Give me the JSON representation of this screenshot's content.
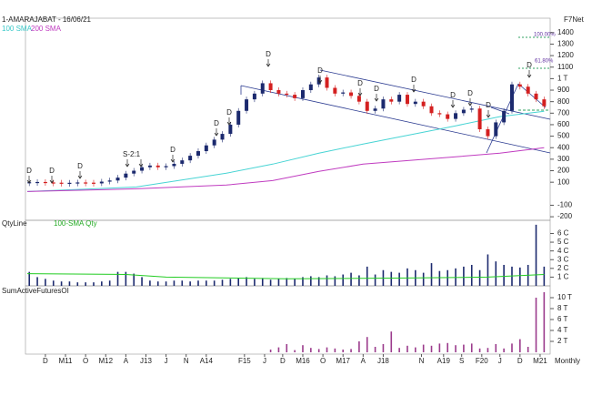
{
  "chart_data": [
    {
      "type": "candlestick",
      "title": "1-AMARAJABAT - 16/06/21",
      "source": "F7Net",
      "period": "Monthly",
      "x": [
        -4,
        -2,
        0,
        2,
        4,
        6,
        8,
        10,
        12,
        14,
        16,
        18,
        20,
        22,
        24,
        26,
        28,
        30,
        32,
        34,
        36,
        38,
        40,
        42,
        44,
        46,
        48,
        50,
        52,
        54,
        56,
        58,
        60,
        62,
        64,
        66,
        68,
        70,
        72,
        74,
        76,
        78,
        80,
        82,
        84,
        86,
        88,
        90,
        92,
        94,
        96,
        98,
        100,
        102,
        104,
        106,
        108,
        110,
        112,
        114,
        116,
        118,
        120,
        122,
        124
      ],
      "values": [
        100,
        102,
        98,
        96,
        92,
        95,
        98,
        96,
        90,
        105,
        115,
        140,
        175,
        200,
        230,
        245,
        230,
        240,
        260,
        290,
        330,
        370,
        420,
        470,
        520,
        600,
        720,
        820,
        870,
        960,
        900,
        870,
        860,
        830,
        900,
        950,
        1010,
        920,
        870,
        880,
        850,
        800,
        720,
        740,
        820,
        800,
        860,
        780,
        800,
        760,
        700,
        690,
        650,
        700,
        730,
        740,
        560,
        500,
        620,
        720,
        950,
        930,
        870,
        820,
        760
      ],
      "up_color": "#1c2a6e",
      "down_color": "#d42020",
      "series": [
        {
          "name": "100 SMA",
          "color": "#48d4d4",
          "x": [
            -4.5,
            22.6,
            45,
            56.5,
            68,
            79,
            90.5,
            102,
            113,
            124
          ],
          "values": [
            19,
            59,
            178,
            257,
            352,
            432,
            511,
            590,
            670,
            717
          ]
        },
        {
          "name": "200 SMA",
          "color": "#c03cc0",
          "x": [
            -4.5,
            22.6,
            45,
            56.5,
            68,
            79,
            90.5,
            102,
            113,
            124
          ],
          "values": [
            19,
            43,
            75,
            114,
            194,
            257,
            289,
            321,
            352,
            400
          ]
        }
      ],
      "xlim": [
        -4.5,
        125.5
      ],
      "xticks": [
        {
          "value": 0,
          "label": "D"
        },
        {
          "value": 5,
          "label": "M11"
        },
        {
          "value": 10,
          "label": "O"
        },
        {
          "value": 15,
          "label": "M12"
        },
        {
          "value": 20,
          "label": "A"
        },
        {
          "value": 25,
          "label": "J13"
        },
        {
          "value": 30,
          "label": "J"
        },
        {
          "value": 35,
          "label": "N"
        },
        {
          "value": 40,
          "label": "A14"
        },
        {
          "value": 49.5,
          "label": "F15"
        },
        {
          "value": 54.5,
          "label": "J"
        },
        {
          "value": 59,
          "label": "D"
        },
        {
          "value": 64,
          "label": "M16"
        },
        {
          "value": 69,
          "label": "O"
        },
        {
          "value": 74,
          "label": "M17"
        },
        {
          "value": 79,
          "label": "A"
        },
        {
          "value": 84,
          "label": "J18"
        },
        {
          "value": 93.5,
          "label": "N"
        },
        {
          "value": 99,
          "label": "A19"
        },
        {
          "value": 103.5,
          "label": "S"
        },
        {
          "value": 108.5,
          "label": "F20"
        },
        {
          "value": 113,
          "label": "J"
        },
        {
          "value": 118,
          "label": "D"
        },
        {
          "value": 123,
          "label": "M21"
        }
      ],
      "ylim": [
        -215,
        1525
      ],
      "yticks": [
        -200,
        -100,
        100,
        200,
        300,
        400,
        500,
        600,
        700,
        800,
        900,
        {
          "value": 1000,
          "label": "1 T"
        },
        1100,
        1200,
        1300,
        1400
      ],
      "annotations": {
        "dividend": "D",
        "split": "S-2:1",
        "fib_high": "100.00%",
        "fib_mid": "61.80%"
      }
    },
    {
      "type": "bar",
      "series": [
        {
          "name": "QtyLine",
          "color": "#1c2a6e",
          "x": [
            -4,
            -2,
            0,
            2,
            4,
            6,
            8,
            10,
            12,
            14,
            16,
            18,
            20,
            22,
            24,
            26,
            28,
            30,
            32,
            34,
            36,
            38,
            40,
            42,
            44,
            46,
            48,
            50,
            52,
            54,
            56,
            58,
            60,
            62,
            64,
            66,
            68,
            70,
            72,
            74,
            76,
            78,
            80,
            82,
            84,
            86,
            88,
            90,
            92,
            94,
            96,
            98,
            100,
            102,
            104,
            106,
            108,
            110,
            112,
            114,
            116,
            118,
            120,
            122,
            124
          ],
          "values": [
            1.6,
            1.0,
            0.8,
            0.6,
            0.5,
            0.5,
            0.4,
            0.4,
            0.4,
            0.5,
            0.6,
            1.6,
            1.6,
            1.4,
            1.0,
            0.6,
            0.5,
            0.5,
            0.6,
            0.6,
            0.5,
            0.6,
            0.6,
            0.6,
            0.7,
            0.8,
            0.9,
            1.0,
            0.8,
            0.9,
            0.7,
            0.8,
            0.9,
            0.8,
            1.0,
            1.1,
            1.0,
            1.2,
            1.1,
            1.3,
            1.5,
            1.2,
            2.2,
            1.3,
            1.8,
            1.6,
            1.5,
            2.0,
            1.8,
            1.5,
            2.6,
            1.7,
            1.8,
            2.0,
            2.2,
            2.4,
            1.8,
            3.6,
            2.8,
            2.4,
            2.2,
            2.1,
            2.4,
            7.0,
            2.2
          ]
        },
        {
          "name": "100-SMA Qty",
          "color": "#22cc22",
          "x": [
            -4.5,
            20,
            30,
            60,
            90,
            110,
            124
          ],
          "values": [
            1.4,
            1.3,
            1.0,
            0.8,
            0.9,
            1.0,
            1.3
          ]
        }
      ],
      "ylim": [
        0,
        7.3
      ],
      "yticks": [
        {
          "value": 1,
          "label": "1 C"
        },
        {
          "value": 2,
          "label": "2 C"
        },
        {
          "value": 3,
          "label": "3 C"
        },
        {
          "value": 4,
          "label": "4 C"
        },
        {
          "value": 5,
          "label": "5 C"
        },
        {
          "value": 6,
          "label": "6 C"
        }
      ]
    },
    {
      "type": "bar",
      "series": [
        {
          "name": "SumActiveFuturesOI",
          "color": "#9b3b8c",
          "x": [
            56,
            58,
            60,
            62,
            64,
            66,
            68,
            70,
            72,
            74,
            76,
            78,
            80,
            82,
            84,
            86,
            88,
            90,
            92,
            94,
            96,
            98,
            100,
            102,
            104,
            106,
            108,
            110,
            112,
            114,
            116,
            118,
            120,
            122,
            124
          ],
          "values": [
            0.5,
            0.9,
            1.5,
            0.4,
            1.3,
            0.8,
            0.6,
            0.9,
            0.7,
            0.5,
            0.6,
            2.0,
            2.8,
            1.0,
            1.5,
            3.8,
            0.8,
            1.2,
            0.9,
            1.4,
            1.2,
            1.6,
            1.7,
            1.3,
            1.4,
            1.6,
            0.7,
            0.8,
            1.5,
            0.7,
            1.6,
            2.4,
            1.0,
            10.0,
            11.0
          ]
        }
      ],
      "ylim": [
        0,
        11.5
      ],
      "yticks": [
        {
          "value": 2,
          "label": "2 T"
        },
        {
          "value": 4,
          "label": "4 T"
        },
        {
          "value": 6,
          "label": "6 T"
        },
        {
          "value": 8,
          "label": "8 T"
        },
        {
          "value": 10,
          "label": "10 T"
        }
      ]
    }
  ]
}
